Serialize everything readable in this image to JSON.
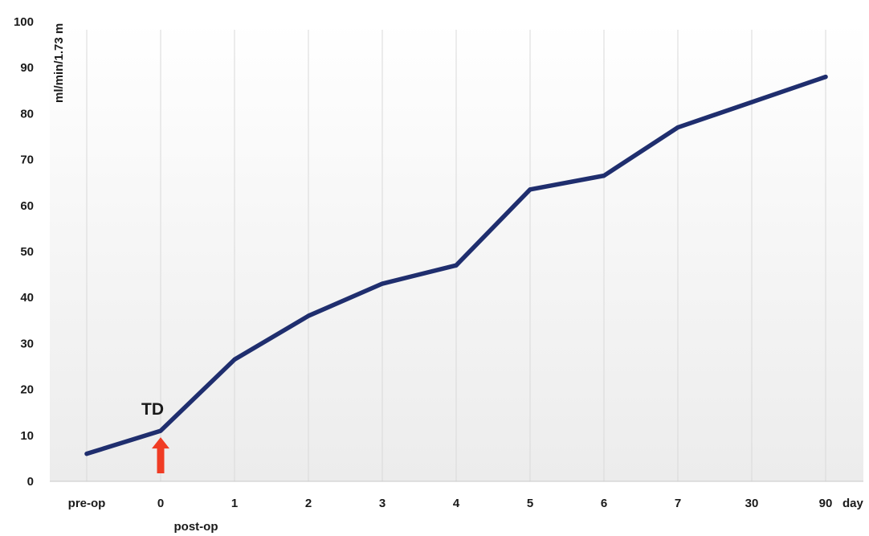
{
  "chart_data": {
    "type": "line",
    "title": "",
    "xlabel": "day",
    "ylabel": "ml/min/1.73 m",
    "categories": [
      "pre-op",
      "0",
      "1",
      "2",
      "3",
      "4",
      "5",
      "6",
      "7",
      "30",
      "90"
    ],
    "category_sublabels": {
      "0": "post-op"
    },
    "series": [
      {
        "values": [
          6,
          11,
          26.5,
          36,
          43,
          47,
          63.5,
          66.5,
          77,
          82.5,
          88
        ]
      }
    ],
    "ylim": [
      0,
      100
    ],
    "yticks": [
      0,
      10,
      20,
      30,
      40,
      50,
      60,
      70,
      80,
      90,
      100
    ],
    "grid": "vertical",
    "annotations": [
      {
        "text": "TD",
        "category": "0",
        "marker": "red-up-arrow"
      }
    ],
    "colors": {
      "line": "#1f2e6e",
      "arrow": "#f03c24",
      "grid": "#d9d9d9",
      "background_gradient_bottom": "#ececec"
    }
  }
}
